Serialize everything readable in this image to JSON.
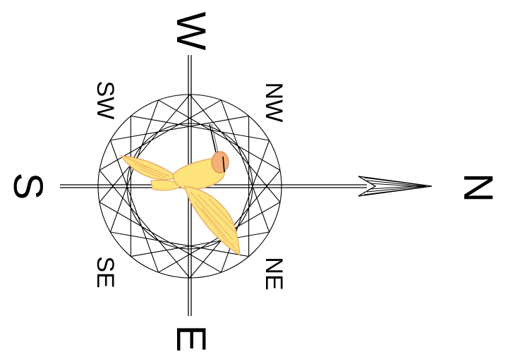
{
  "compass": {
    "labels": {
      "north": "N",
      "south": "S",
      "east": "E",
      "west": "W",
      "northeast": "NE",
      "northwest": "NW",
      "southeast": "SE",
      "southwest": "SW"
    },
    "star_points": 18,
    "center_bird": "hummingbird-icon",
    "colors": {
      "line": "#000000",
      "bird_body": "#fde37a",
      "bird_wing": "#fbe27c",
      "bird_accent": "#f4b07a",
      "arrow_hatch": "#000000"
    }
  }
}
